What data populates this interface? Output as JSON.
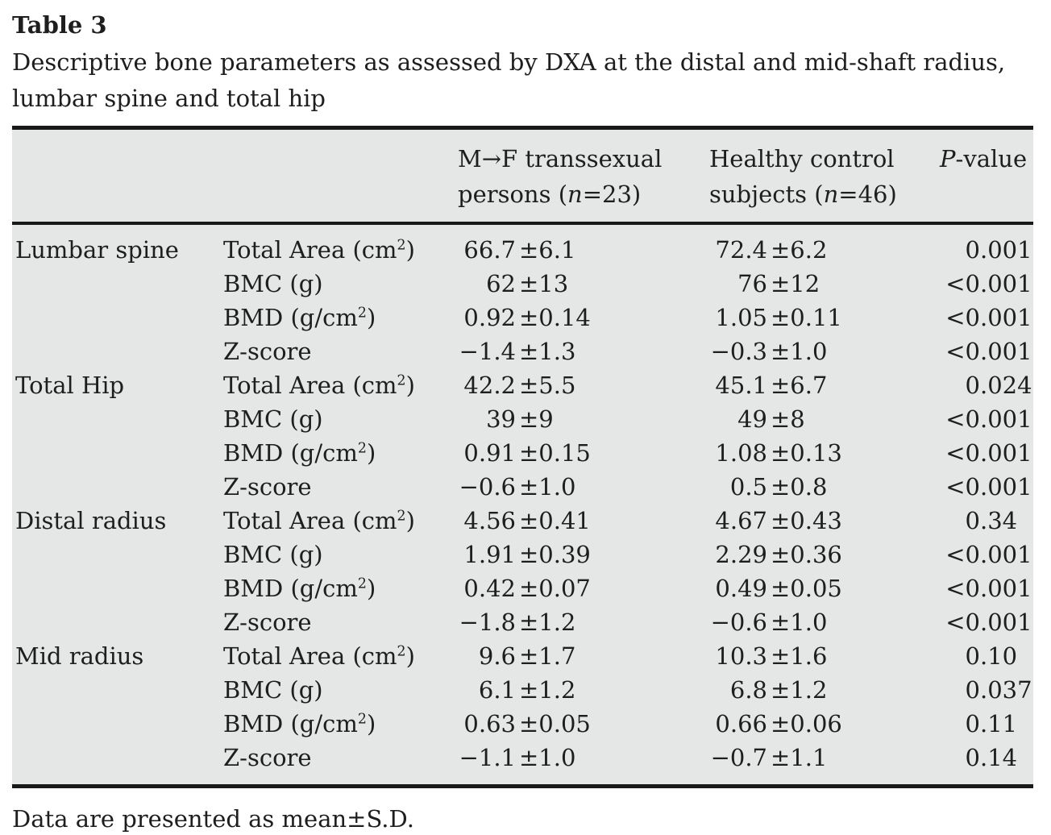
{
  "title": "Table 3",
  "caption": "Descriptive bone parameters as assessed by DXA at the distal and mid-shaft radius, lumbar spine and total hip",
  "header": {
    "mf": {
      "line1": "M→F transsexual",
      "line2_pre": "persons (",
      "line2_italic": "n",
      "line2_post": "=23)"
    },
    "hc": {
      "line1": "Healthy control",
      "line2_pre": "subjects (",
      "line2_italic": "n",
      "line2_post": "=46)"
    },
    "p": {
      "italic": "P",
      "rest": "-value"
    }
  },
  "sections": [
    {
      "region": "Lumbar spine",
      "rows": [
        {
          "param_pre": "Total Area (cm",
          "param_sup": "2",
          "param_post": ")",
          "mf": "66.7±6.1",
          "hc": "72.4±6.2",
          "p": "0.001"
        },
        {
          "param_pre": "BMC (g)",
          "param_sup": "",
          "param_post": "",
          "mf": "62±13",
          "hc": "76±12",
          "p": "<0.001"
        },
        {
          "param_pre": "BMD (g/cm",
          "param_sup": "2",
          "param_post": ")",
          "mf": "0.92±0.14",
          "hc": "1.05±0.11",
          "p": "<0.001"
        },
        {
          "param_pre": "Z-score",
          "param_sup": "",
          "param_post": "",
          "mf": "−1.4±1.3",
          "hc": "−0.3±1.0",
          "p": "<0.001"
        }
      ]
    },
    {
      "region": "Total Hip",
      "rows": [
        {
          "param_pre": "Total Area (cm",
          "param_sup": "2",
          "param_post": ")",
          "mf": "42.2±5.5",
          "hc": "45.1±6.7",
          "p": "0.024"
        },
        {
          "param_pre": "BMC (g)",
          "param_sup": "",
          "param_post": "",
          "mf": "39±9",
          "hc": "49±8",
          "p": "<0.001"
        },
        {
          "param_pre": "BMD (g/cm",
          "param_sup": "2",
          "param_post": ")",
          "mf": "0.91±0.15",
          "hc": "1.08±0.13",
          "p": "<0.001"
        },
        {
          "param_pre": "Z-score",
          "param_sup": "",
          "param_post": "",
          "mf": "−0.6±1.0",
          "hc": "0.5±0.8",
          "p": "<0.001"
        }
      ]
    },
    {
      "region": "Distal radius",
      "rows": [
        {
          "param_pre": "Total Area (cm",
          "param_sup": "2",
          "param_post": ")",
          "mf": "4.56±0.41",
          "hc": "4.67±0.43",
          "p": "0.34"
        },
        {
          "param_pre": "BMC (g)",
          "param_sup": "",
          "param_post": "",
          "mf": "1.91±0.39",
          "hc": "2.29±0.36",
          "p": "<0.001"
        },
        {
          "param_pre": "BMD (g/cm",
          "param_sup": "2",
          "param_post": ")",
          "mf": "0.42±0.07",
          "hc": "0.49±0.05",
          "p": "<0.001"
        },
        {
          "param_pre": "Z-score",
          "param_sup": "",
          "param_post": "",
          "mf": "−1.8±1.2",
          "hc": "−0.6±1.0",
          "p": "<0.001"
        }
      ]
    },
    {
      "region": "Mid radius",
      "rows": [
        {
          "param_pre": "Total Area (cm",
          "param_sup": "2",
          "param_post": ")",
          "mf": "9.6±1.7",
          "hc": "10.3±1.6",
          "p": "0.10"
        },
        {
          "param_pre": "BMC (g)",
          "param_sup": "",
          "param_post": "",
          "mf": "6.1±1.2",
          "hc": "6.8±1.2",
          "p": "0.037"
        },
        {
          "param_pre": "BMD (g/cm",
          "param_sup": "2",
          "param_post": ")",
          "mf": "0.63±0.05",
          "hc": "0.66±0.06",
          "p": "0.11"
        },
        {
          "param_pre": "Z-score",
          "param_sup": "",
          "param_post": "",
          "mf": "−1.1±1.0",
          "hc": "−0.7±1.1",
          "p": "0.14"
        }
      ]
    }
  ],
  "footnote": "Data are presented as mean±S.D.",
  "colors": {
    "table_bg": "#e5e6e6",
    "rule": "#191919",
    "text": "#1e1e1e"
  }
}
